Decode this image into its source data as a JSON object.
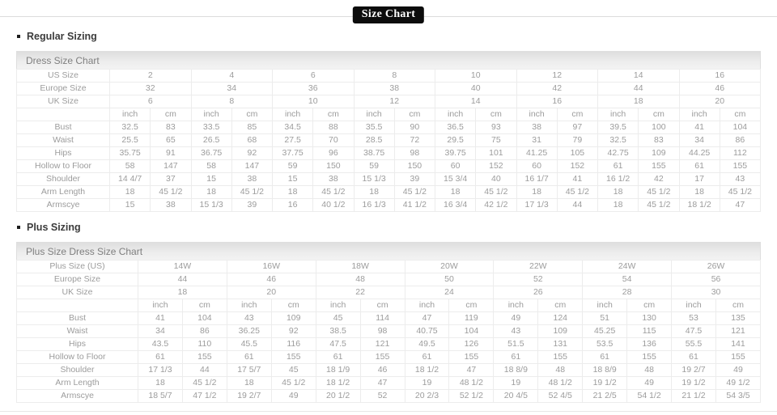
{
  "title": "Size Chart",
  "sections": [
    {
      "heading": "Regular Sizing",
      "table_title": "Dress Size Chart",
      "units": [
        "inch",
        "cm"
      ],
      "size_rows": [
        {
          "label": "US Size",
          "values": [
            "2",
            "4",
            "6",
            "8",
            "10",
            "12",
            "14",
            "16"
          ]
        },
        {
          "label": "Europe Size",
          "values": [
            "32",
            "34",
            "36",
            "38",
            "40",
            "42",
            "44",
            "46"
          ]
        },
        {
          "label": "UK Size",
          "values": [
            "6",
            "8",
            "10",
            "12",
            "14",
            "16",
            "18",
            "20"
          ]
        }
      ],
      "measure_rows": [
        {
          "label": "Bust",
          "values": [
            "32.5",
            "83",
            "33.5",
            "85",
            "34.5",
            "88",
            "35.5",
            "90",
            "36.5",
            "93",
            "38",
            "97",
            "39.5",
            "100",
            "41",
            "104"
          ]
        },
        {
          "label": "Waist",
          "values": [
            "25.5",
            "65",
            "26.5",
            "68",
            "27.5",
            "70",
            "28.5",
            "72",
            "29.5",
            "75",
            "31",
            "79",
            "32.5",
            "83",
            "34",
            "86"
          ]
        },
        {
          "label": "Hips",
          "values": [
            "35.75",
            "91",
            "36.75",
            "92",
            "37.75",
            "96",
            "38.75",
            "98",
            "39.75",
            "101",
            "41.25",
            "105",
            "42.75",
            "109",
            "44.25",
            "112"
          ]
        },
        {
          "label": "Hollow to Floor",
          "values": [
            "58",
            "147",
            "58",
            "147",
            "59",
            "150",
            "59",
            "150",
            "60",
            "152",
            "60",
            "152",
            "61",
            "155",
            "61",
            "155"
          ]
        },
        {
          "label": "Shoulder",
          "values": [
            "14 4/7",
            "37",
            "15",
            "38",
            "15",
            "38",
            "15 1/3",
            "39",
            "15 3/4",
            "40",
            "16 1/7",
            "41",
            "16 1/2",
            "42",
            "17",
            "43"
          ]
        },
        {
          "label": "Arm Length",
          "values": [
            "18",
            "45 1/2",
            "18",
            "45 1/2",
            "18",
            "45 1/2",
            "18",
            "45 1/2",
            "18",
            "45 1/2",
            "18",
            "45 1/2",
            "18",
            "45 1/2",
            "18",
            "45 1/2"
          ]
        },
        {
          "label": "Armscye",
          "values": [
            "15",
            "38",
            "15 1/3",
            "39",
            "16",
            "40 1/2",
            "16 1/3",
            "41 1/2",
            "16 3/4",
            "42 1/2",
            "17 1/3",
            "44",
            "18",
            "45 1/2",
            "18 1/2",
            "47"
          ]
        }
      ]
    },
    {
      "heading": "Plus Sizing",
      "table_title": "Plus Size Dress Size Chart",
      "units": [
        "inch",
        "cm"
      ],
      "size_rows": [
        {
          "label": "Plus Size (US)",
          "values": [
            "14W",
            "16W",
            "18W",
            "20W",
            "22W",
            "24W",
            "26W"
          ]
        },
        {
          "label": "Europe Size",
          "values": [
            "44",
            "46",
            "48",
            "50",
            "52",
            "54",
            "56"
          ]
        },
        {
          "label": "UK Size",
          "values": [
            "18",
            "20",
            "22",
            "24",
            "26",
            "28",
            "30"
          ]
        }
      ],
      "measure_rows": [
        {
          "label": "Bust",
          "values": [
            "41",
            "104",
            "43",
            "109",
            "45",
            "114",
            "47",
            "119",
            "49",
            "124",
            "51",
            "130",
            "53",
            "135"
          ]
        },
        {
          "label": "Waist",
          "values": [
            "34",
            "86",
            "36.25",
            "92",
            "38.5",
            "98",
            "40.75",
            "104",
            "43",
            "109",
            "45.25",
            "115",
            "47.5",
            "121"
          ]
        },
        {
          "label": "Hips",
          "values": [
            "43.5",
            "110",
            "45.5",
            "116",
            "47.5",
            "121",
            "49.5",
            "126",
            "51.5",
            "131",
            "53.5",
            "136",
            "55.5",
            "141"
          ]
        },
        {
          "label": "Hollow to Floor",
          "values": [
            "61",
            "155",
            "61",
            "155",
            "61",
            "155",
            "61",
            "155",
            "61",
            "155",
            "61",
            "155",
            "61",
            "155"
          ]
        },
        {
          "label": "Shoulder",
          "values": [
            "17 1/3",
            "44",
            "17 5/7",
            "45",
            "18 1/9",
            "46",
            "18 1/2",
            "47",
            "18 8/9",
            "48",
            "18 8/9",
            "48",
            "19 2/7",
            "49"
          ]
        },
        {
          "label": "Arm Length",
          "values": [
            "18",
            "45 1/2",
            "18",
            "45 1/2",
            "18 1/2",
            "47",
            "19",
            "48 1/2",
            "19",
            "48 1/2",
            "19 1/2",
            "49",
            "19 1/2",
            "49 1/2"
          ]
        },
        {
          "label": "Armscye",
          "values": [
            "18 5/7",
            "47 1/2",
            "19 2/7",
            "49",
            "20 1/2",
            "52",
            "20 2/3",
            "52 1/2",
            "20 4/5",
            "52 4/5",
            "21 2/5",
            "54 1/2",
            "21 1/2",
            "54 3/5"
          ]
        }
      ]
    }
  ]
}
